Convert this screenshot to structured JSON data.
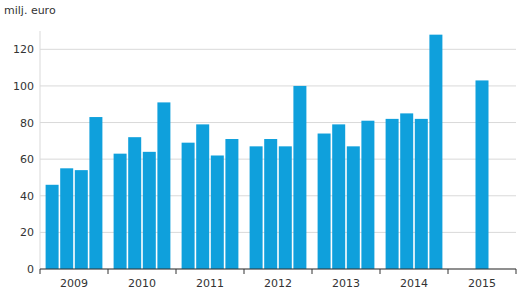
{
  "chart_data": {
    "type": "bar",
    "y_label": "milj. euro",
    "categories": [
      "2009",
      "2010",
      "2011",
      "2012",
      "2013",
      "2014",
      "2015"
    ],
    "values": [
      [
        46,
        55,
        54,
        83
      ],
      [
        63,
        72,
        64,
        91
      ],
      [
        69,
        79,
        62,
        71
      ],
      [
        67,
        71,
        67,
        100
      ],
      [
        74,
        79,
        67,
        81
      ],
      [
        82,
        85,
        82,
        128
      ],
      [
        103
      ]
    ],
    "color": "#0fa0dc",
    "ylim": [
      0,
      130
    ],
    "yticks": [
      0,
      20,
      40,
      60,
      80,
      100,
      120
    ],
    "grid": true
  }
}
